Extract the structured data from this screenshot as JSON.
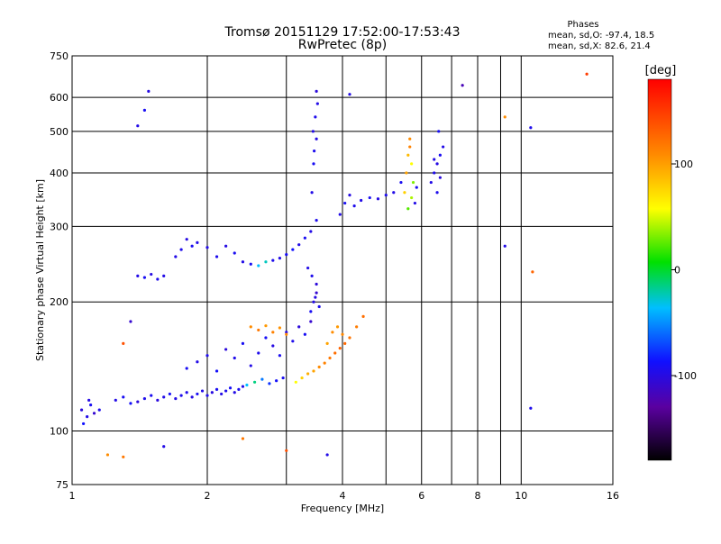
{
  "chart_data": {
    "type": "scatter",
    "title": "Tromsø 20151129 17:52:00-17:53:43",
    "subtitle": "RwPretec (8p)",
    "xlabel": "Frequency [MHz]",
    "ylabel": "Stationary phase Virtual Height [km]",
    "xscale": "log",
    "yscale": "log",
    "xlim": [
      1,
      16
    ],
    "ylim": [
      75,
      750
    ],
    "x_ticks": [
      {
        "v": 1,
        "label": "1"
      },
      {
        "v": 2,
        "label": "2"
      },
      {
        "v": 4,
        "label": "4"
      },
      {
        "v": 6,
        "label": "6"
      },
      {
        "v": 8,
        "label": "8"
      },
      {
        "v": 10,
        "label": "10"
      },
      {
        "v": 16,
        "label": "16"
      }
    ],
    "x_minor": [
      3,
      5,
      7,
      9
    ],
    "y_ticks": [
      {
        "v": 75,
        "label": "75"
      },
      {
        "v": 100,
        "label": "100"
      },
      {
        "v": 200,
        "label": "200"
      },
      {
        "v": 300,
        "label": "300"
      },
      {
        "v": 400,
        "label": "400"
      },
      {
        "v": 500,
        "label": "500"
      },
      {
        "v": 600,
        "label": "600"
      },
      {
        "v": 750,
        "label": "750"
      }
    ],
    "grid": true,
    "stats": {
      "heading": "Phases",
      "line1": "mean, sd,O:  -97.4, 18.5",
      "line2": "mean, sd,X:  82.6, 21.4"
    },
    "colorbar": {
      "label": "[deg]",
      "range": [
        -180,
        180
      ],
      "ticks": [
        {
          "v": 100,
          "label": "100"
        },
        {
          "v": 0,
          "label": "0"
        },
        {
          "v": -100,
          "label": "-100"
        }
      ],
      "colormap": "rainbow"
    },
    "points": [
      [
        1.05,
        112,
        -105
      ],
      [
        1.08,
        108,
        -100
      ],
      [
        1.1,
        115,
        -95
      ],
      [
        1.12,
        110,
        -110
      ],
      [
        1.06,
        104,
        -90
      ],
      [
        1.15,
        112,
        -98
      ],
      [
        1.09,
        118,
        -102
      ],
      [
        1.25,
        118,
        -100
      ],
      [
        1.3,
        120,
        -95
      ],
      [
        1.35,
        116,
        -92
      ],
      [
        1.4,
        117,
        -105
      ],
      [
        1.45,
        119,
        -98
      ],
      [
        1.5,
        121,
        -96
      ],
      [
        1.55,
        118,
        -104
      ],
      [
        1.6,
        120,
        -100
      ],
      [
        1.65,
        122,
        -93
      ],
      [
        1.7,
        119,
        -101
      ],
      [
        1.75,
        121,
        -97
      ],
      [
        1.8,
        123,
        -99
      ],
      [
        1.85,
        120,
        -102
      ],
      [
        1.9,
        122,
        -95
      ],
      [
        1.95,
        124,
        -100
      ],
      [
        2.0,
        121,
        -98
      ],
      [
        2.05,
        123,
        -103
      ],
      [
        2.1,
        125,
        -96
      ],
      [
        2.15,
        122,
        -100
      ],
      [
        2.2,
        124,
        -98
      ],
      [
        2.25,
        126,
        -94
      ],
      [
        2.3,
        123,
        -101
      ],
      [
        2.35,
        125,
        -97
      ],
      [
        2.4,
        127,
        -99
      ],
      [
        2.45,
        128,
        -40
      ],
      [
        2.55,
        130,
        -20
      ],
      [
        2.65,
        132,
        -60
      ],
      [
        2.75,
        129,
        -80
      ],
      [
        2.85,
        131,
        -92
      ],
      [
        2.95,
        133,
        -96
      ],
      [
        1.8,
        140,
        -95
      ],
      [
        1.9,
        145,
        -100
      ],
      [
        2.0,
        150,
        -98
      ],
      [
        2.1,
        138,
        -92
      ],
      [
        2.2,
        155,
        -105
      ],
      [
        2.3,
        148,
        -99
      ],
      [
        2.4,
        160,
        -95
      ],
      [
        2.5,
        142,
        -100
      ],
      [
        2.6,
        152,
        -98
      ],
      [
        2.7,
        165,
        -94
      ],
      [
        2.8,
        158,
        -102
      ],
      [
        2.9,
        150,
        -96
      ],
      [
        3.0,
        170,
        -100
      ],
      [
        3.1,
        162,
        -98
      ],
      [
        3.2,
        175,
        -105
      ],
      [
        3.3,
        168,
        -95
      ],
      [
        3.4,
        180,
        -110
      ],
      [
        2.5,
        175,
        110
      ],
      [
        2.6,
        172,
        120
      ],
      [
        2.7,
        176,
        105
      ],
      [
        2.8,
        170,
        115
      ],
      [
        2.9,
        174,
        108
      ],
      [
        3.0,
        168,
        112
      ],
      [
        3.15,
        130,
        60
      ],
      [
        3.25,
        133,
        80
      ],
      [
        3.35,
        136,
        95
      ],
      [
        3.45,
        138,
        100
      ],
      [
        3.55,
        141,
        110
      ],
      [
        3.65,
        144,
        115
      ],
      [
        3.75,
        148,
        120
      ],
      [
        3.85,
        152,
        125
      ],
      [
        3.95,
        156,
        130
      ],
      [
        4.05,
        160,
        128
      ],
      [
        4.15,
        165,
        122
      ],
      [
        4.3,
        175,
        118
      ],
      [
        4.45,
        185,
        125
      ],
      [
        3.45,
        200,
        -100
      ],
      [
        3.5,
        210,
        -110
      ],
      [
        3.4,
        190,
        -95
      ],
      [
        3.5,
        220,
        -105
      ],
      [
        3.42,
        230,
        -98
      ],
      [
        3.48,
        205,
        -102
      ],
      [
        3.55,
        195,
        -97
      ],
      [
        3.35,
        240,
        -100
      ],
      [
        3.7,
        160,
        100
      ],
      [
        3.8,
        170,
        110
      ],
      [
        3.9,
        175,
        105
      ],
      [
        4.0,
        168,
        112
      ],
      [
        1.4,
        230,
        -100
      ],
      [
        1.45,
        228,
        -95
      ],
      [
        1.5,
        232,
        -102
      ],
      [
        1.55,
        226,
        -98
      ],
      [
        1.6,
        230,
        -100
      ],
      [
        1.7,
        255,
        -100
      ],
      [
        1.75,
        265,
        -98
      ],
      [
        1.8,
        280,
        -102
      ],
      [
        1.85,
        270,
        -96
      ],
      [
        1.9,
        275,
        -100
      ],
      [
        2.0,
        268,
        -100
      ],
      [
        2.1,
        255,
        -98
      ],
      [
        2.2,
        270,
        -102
      ],
      [
        2.3,
        260,
        -96
      ],
      [
        2.4,
        248,
        -100
      ],
      [
        2.5,
        245,
        -95
      ],
      [
        2.6,
        243,
        -40
      ],
      [
        2.7,
        248,
        -30
      ],
      [
        2.8,
        250,
        -98
      ],
      [
        2.9,
        253,
        -100
      ],
      [
        3.0,
        258,
        -95
      ],
      [
        3.1,
        265,
        -90
      ],
      [
        3.2,
        272,
        -100
      ],
      [
        3.3,
        282,
        -96
      ],
      [
        3.4,
        292,
        -100
      ],
      [
        3.5,
        310,
        -98
      ],
      [
        3.42,
        360,
        -100
      ],
      [
        3.45,
        420,
        -95
      ],
      [
        3.5,
        480,
        -102
      ],
      [
        3.48,
        540,
        -98
      ],
      [
        3.52,
        580,
        -100
      ],
      [
        3.5,
        620,
        -105
      ],
      [
        3.46,
        450,
        -97
      ],
      [
        3.44,
        500,
        -101
      ],
      [
        3.95,
        320,
        -100
      ],
      [
        4.05,
        340,
        -95
      ],
      [
        4.15,
        355,
        -102
      ],
      [
        4.25,
        335,
        -98
      ],
      [
        4.4,
        345,
        -100
      ],
      [
        4.6,
        350,
        -95
      ],
      [
        4.8,
        348,
        -102
      ],
      [
        5.0,
        355,
        -98
      ],
      [
        5.2,
        360,
        -100
      ],
      [
        5.4,
        380,
        -96
      ],
      [
        5.5,
        360,
        80
      ],
      [
        5.55,
        400,
        100
      ],
      [
        5.6,
        440,
        90
      ],
      [
        5.65,
        480,
        110
      ],
      [
        5.7,
        420,
        60
      ],
      [
        5.75,
        380,
        30
      ],
      [
        5.6,
        330,
        20
      ],
      [
        5.7,
        350,
        40
      ],
      [
        5.65,
        460,
        115
      ],
      [
        5.8,
        340,
        -100
      ],
      [
        5.85,
        370,
        -95
      ],
      [
        6.3,
        380,
        -100
      ],
      [
        6.4,
        400,
        -98
      ],
      [
        6.5,
        420,
        -102
      ],
      [
        6.6,
        440,
        -96
      ],
      [
        6.7,
        460,
        -100
      ],
      [
        6.5,
        360,
        -98
      ],
      [
        6.6,
        390,
        -104
      ],
      [
        6.55,
        500,
        -95
      ],
      [
        6.4,
        430,
        -101
      ],
      [
        1.4,
        515,
        -100
      ],
      [
        1.45,
        560,
        -95
      ],
      [
        1.48,
        620,
        -102
      ],
      [
        4.15,
        610,
        -100
      ],
      [
        7.4,
        640,
        -120
      ],
      [
        9.2,
        540,
        110
      ],
      [
        10.5,
        510,
        -98
      ],
      [
        14.0,
        680,
        150
      ],
      [
        1.3,
        160,
        140
      ],
      [
        1.35,
        180,
        -110
      ],
      [
        1.6,
        92,
        -100
      ],
      [
        2.4,
        96,
        120
      ],
      [
        3.0,
        90,
        140
      ],
      [
        3.7,
        88,
        -100
      ],
      [
        1.2,
        88,
        110
      ],
      [
        1.3,
        87,
        120
      ],
      [
        10.5,
        113,
        -98
      ],
      [
        9.2,
        270,
        -100
      ],
      [
        10.6,
        235,
        130
      ]
    ]
  }
}
